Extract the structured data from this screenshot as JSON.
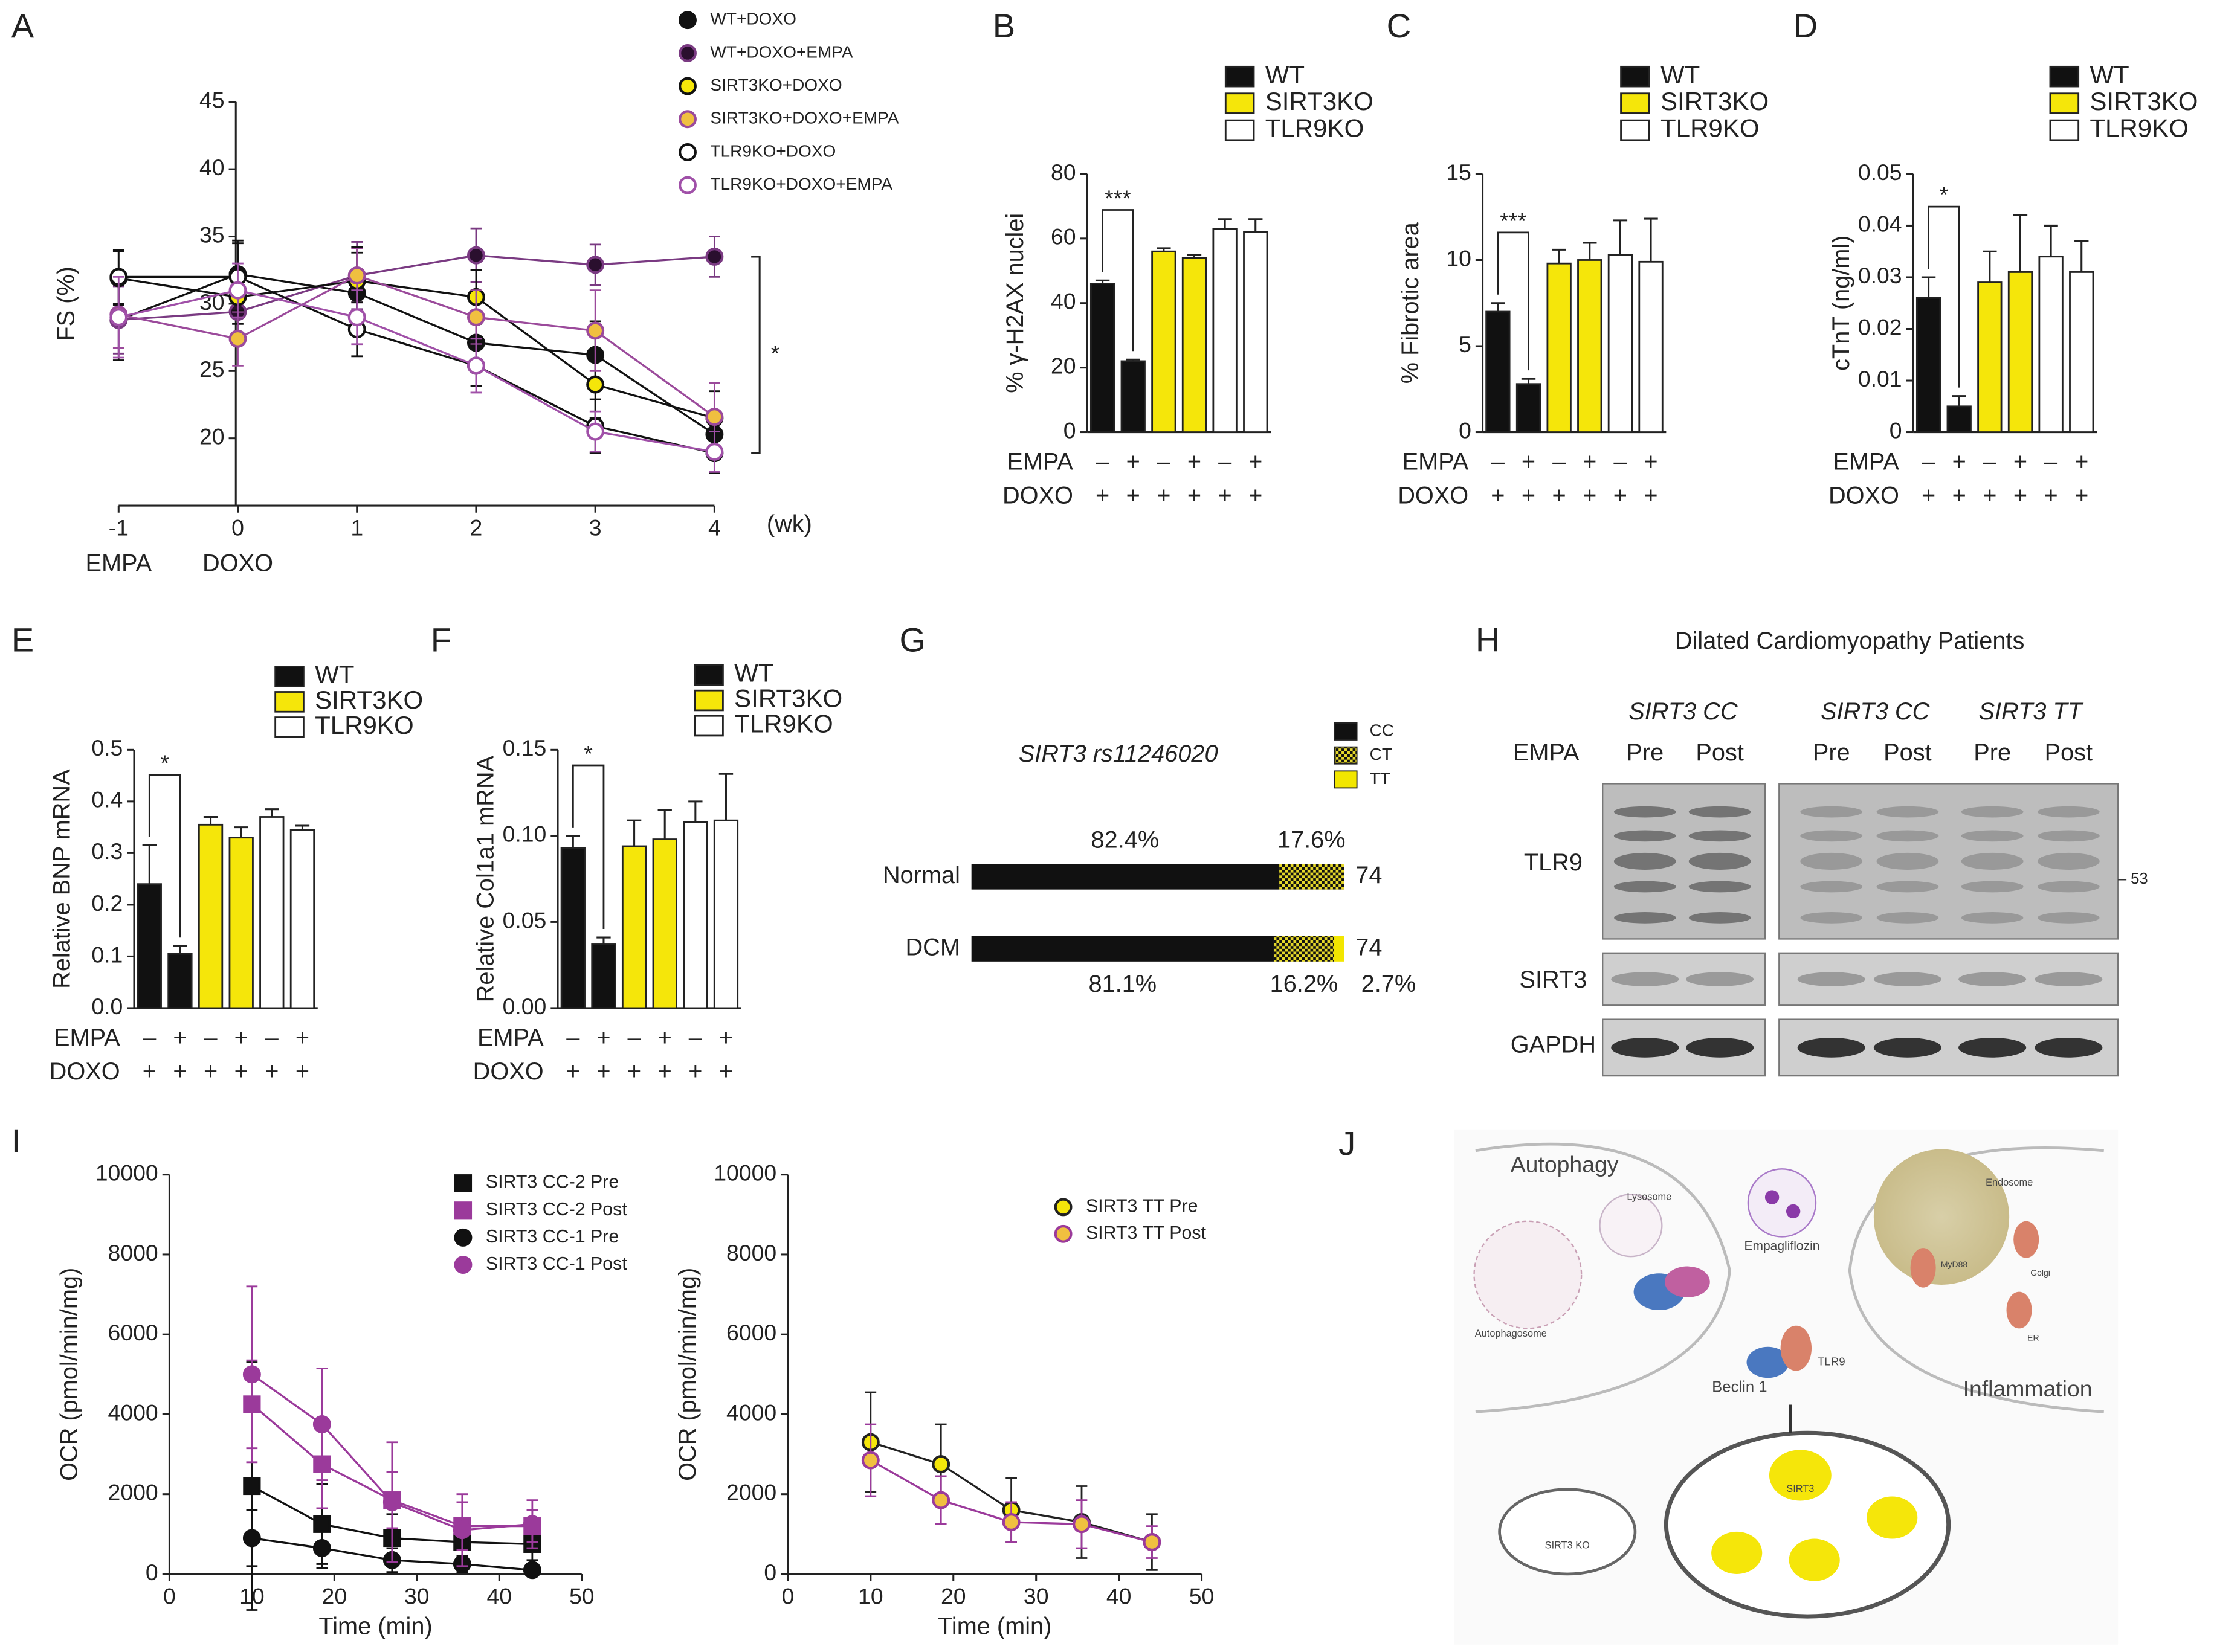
{
  "chart_data": [
    {
      "type": "line",
      "label": "A",
      "ylabel": "FS (%)",
      "xlabel": "(wk)",
      "x": [
        -1,
        0,
        1,
        2,
        3,
        4
      ],
      "xlim": [
        -1,
        4
      ],
      "xticks": [
        -1,
        0,
        1,
        2,
        3,
        4
      ],
      "ylim": [
        15,
        45
      ],
      "yticks": [
        20,
        25,
        30,
        35,
        40,
        45
      ],
      "x_annotations": [
        {
          "x": -1,
          "text": "EMPA"
        },
        {
          "x": 0,
          "text": "DOXO"
        }
      ],
      "significance": "*",
      "series": [
        {
          "name": "WT+DOXO",
          "color": "#111111",
          "fill": "#111111",
          "marker": "circle",
          "values": [
            28.8,
            32.2,
            30.8,
            27.1,
            26.2,
            20.3
          ],
          "errors": [
            3,
            2.5,
            3,
            2,
            2.5,
            1.5
          ]
        },
        {
          "name": "WT+DOXO+EMPA",
          "color": "#7a3a82",
          "fill": "#2a0f2e",
          "marker": "circle",
          "values": [
            28.8,
            29.4,
            32.1,
            33.6,
            32.9,
            33.5
          ],
          "errors": [
            2.5,
            2,
            2.5,
            2,
            1.5,
            1.5
          ]
        },
        {
          "name": "SIRT3KO+DOXO",
          "color": "#111111",
          "fill": "#f5e60a",
          "marker": "circle",
          "values": [
            31.9,
            30.5,
            31.7,
            30.5,
            24,
            21.5
          ],
          "errors": [
            2,
            2,
            2.5,
            2,
            2.5,
            2
          ]
        },
        {
          "name": "SIRT3KO+DOXO+EMPA",
          "color": "#9b4a9b",
          "fill": "#f0c040",
          "marker": "circle",
          "values": [
            29.2,
            27.4,
            32.1,
            29,
            28,
            21.6
          ],
          "errors": [
            2.5,
            2,
            2,
            2,
            3,
            2.5
          ]
        },
        {
          "name": "TLR9KO+DOXO",
          "color": "#111111",
          "fill": "#ffffff",
          "marker": "circle",
          "values": [
            32,
            32,
            28.1,
            25.4,
            20.9,
            18.9
          ],
          "errors": [
            2,
            2.5,
            2,
            1.5,
            2,
            1.5
          ]
        },
        {
          "name": "TLR9KO+DOXO+EMPA",
          "color": "#a050a8",
          "fill": "#ffffff",
          "marker": "circle",
          "values": [
            29,
            31,
            29,
            25.4,
            20.5,
            19
          ],
          "errors": [
            3,
            2,
            2,
            2,
            1.5,
            1.5
          ]
        }
      ]
    },
    {
      "type": "bar",
      "label": "B",
      "ylabel": "% γ-H2AX nuclei",
      "ylim": [
        0,
        80
      ],
      "yticks": [
        0,
        20,
        40,
        60,
        80
      ],
      "values": [
        46,
        22,
        56,
        54,
        63,
        62
      ],
      "errors": [
        1,
        0.5,
        1,
        1,
        3,
        4
      ],
      "colors": [
        "#111111",
        "#111111",
        "#f5e60a",
        "#f5e60a",
        "#ffffff",
        "#ffffff"
      ],
      "significance": "***",
      "rows": [
        {
          "label": "EMPA",
          "values": [
            "–",
            "+",
            "–",
            "+",
            "–",
            "+"
          ]
        },
        {
          "label": "DOXO",
          "values": [
            "+",
            "+",
            "+",
            "+",
            "+",
            "+"
          ]
        }
      ],
      "legend": [
        {
          "name": "WT",
          "color": "#111111"
        },
        {
          "name": "SIRT3KO",
          "color": "#f5e60a"
        },
        {
          "name": "TLR9KO",
          "color": "#ffffff"
        }
      ]
    },
    {
      "type": "bar",
      "label": "C",
      "ylabel": "% Fibrotic area",
      "ylim": [
        0,
        15
      ],
      "yticks": [
        0,
        5,
        10,
        15
      ],
      "values": [
        7,
        2.8,
        9.8,
        10,
        10.3,
        9.9
      ],
      "errors": [
        0.5,
        0.3,
        0.8,
        1,
        2,
        2.5
      ],
      "colors": [
        "#111111",
        "#111111",
        "#f5e60a",
        "#f5e60a",
        "#ffffff",
        "#ffffff"
      ],
      "significance": "***",
      "rows": [
        {
          "label": "EMPA",
          "values": [
            "–",
            "+",
            "–",
            "+",
            "–",
            "+"
          ]
        },
        {
          "label": "DOXO",
          "values": [
            "+",
            "+",
            "+",
            "+",
            "+",
            "+"
          ]
        }
      ],
      "legend": [
        {
          "name": "WT",
          "color": "#111111"
        },
        {
          "name": "SIRT3KO",
          "color": "#f5e60a"
        },
        {
          "name": "TLR9KO",
          "color": "#ffffff"
        }
      ]
    },
    {
      "type": "bar",
      "label": "D",
      "ylabel": "cTnT (ng/ml)",
      "ylim": [
        0,
        0.05
      ],
      "yticks": [
        0,
        0.01,
        0.02,
        0.03,
        0.04,
        0.05
      ],
      "values": [
        0.026,
        0.005,
        0.029,
        0.031,
        0.034,
        0.031
      ],
      "errors": [
        0.004,
        0.002,
        0.006,
        0.011,
        0.006,
        0.006
      ],
      "colors": [
        "#111111",
        "#111111",
        "#f5e60a",
        "#f5e60a",
        "#ffffff",
        "#ffffff"
      ],
      "significance": "*",
      "rows": [
        {
          "label": "EMPA",
          "values": [
            "–",
            "+",
            "–",
            "+",
            "–",
            "+"
          ]
        },
        {
          "label": "DOXO",
          "values": [
            "+",
            "+",
            "+",
            "+",
            "+",
            "+"
          ]
        }
      ],
      "legend": [
        {
          "name": "WT",
          "color": "#111111"
        },
        {
          "name": "SIRT3KO",
          "color": "#f5e60a"
        },
        {
          "name": "TLR9KO",
          "color": "#ffffff"
        }
      ]
    },
    {
      "type": "bar",
      "label": "E",
      "ylabel": "Relative BNP mRNA",
      "ylim": [
        0,
        0.5
      ],
      "yticks": [
        {
          "value": 0,
          "label": "0.0"
        },
        0.1,
        0.2,
        0.3,
        0.4,
        0.5
      ],
      "values": [
        0.24,
        0.105,
        0.355,
        0.33,
        0.37,
        0.345
      ],
      "errors": [
        0.075,
        0.015,
        0.015,
        0.02,
        0.015,
        0.008
      ],
      "colors": [
        "#111111",
        "#111111",
        "#f5e60a",
        "#f5e60a",
        "#ffffff",
        "#ffffff"
      ],
      "significance": "*",
      "rows": [
        {
          "label": "EMPA",
          "values": [
            "–",
            "+",
            "–",
            "+",
            "–",
            "+"
          ]
        },
        {
          "label": "DOXO",
          "values": [
            "+",
            "+",
            "+",
            "+",
            "+",
            "+"
          ]
        }
      ],
      "legend": [
        {
          "name": "WT",
          "color": "#111111"
        },
        {
          "name": "SIRT3KO",
          "color": "#f5e60a"
        },
        {
          "name": "TLR9KO",
          "color": "#ffffff"
        }
      ]
    },
    {
      "type": "bar",
      "label": "F",
      "ylabel": "Relative Col1a1 mRNA",
      "ylim": [
        0,
        0.15
      ],
      "yticks": [
        {
          "value": 0,
          "label": "0.00"
        },
        {
          "value": 0.05,
          "label": "0.05"
        },
        {
          "value": 0.1,
          "label": "0.10"
        },
        {
          "value": 0.15,
          "label": "0.15"
        }
      ],
      "values": [
        0.093,
        0.037,
        0.094,
        0.098,
        0.108,
        0.109
      ],
      "errors": [
        0.007,
        0.004,
        0.015,
        0.017,
        0.012,
        0.027
      ],
      "colors": [
        "#111111",
        "#111111",
        "#f5e60a",
        "#f5e60a",
        "#ffffff",
        "#ffffff"
      ],
      "significance": "*",
      "rows": [
        {
          "label": "EMPA",
          "values": [
            "–",
            "+",
            "–",
            "+",
            "–",
            "+"
          ]
        },
        {
          "label": "DOXO",
          "values": [
            "+",
            "+",
            "+",
            "+",
            "+",
            "+"
          ]
        }
      ],
      "legend": [
        {
          "name": "WT",
          "color": "#111111"
        },
        {
          "name": "SIRT3KO",
          "color": "#f5e60a"
        },
        {
          "name": "TLR9KO",
          "color": "#ffffff"
        }
      ]
    },
    {
      "type": "stacked_bar",
      "label": "G",
      "title": "SIRT3 rs11246020",
      "categories": [
        "Normal",
        "DCM"
      ],
      "xlim": [
        0,
        100
      ],
      "n": [
        74,
        74
      ],
      "series": [
        {
          "name": "CC",
          "color": "#111111",
          "values": [
            82.4,
            81.1
          ],
          "value_labels": [
            "82.4%",
            "81.1%"
          ]
        },
        {
          "name": "CT",
          "color": "#e6d92a",
          "hatch": true,
          "values": [
            17.6,
            16.2
          ],
          "value_labels": [
            "17.6%",
            "16.2%"
          ]
        },
        {
          "name": "TT",
          "color": "#f2e600",
          "values": [
            0,
            2.7
          ],
          "value_labels": [
            null,
            "2.7%"
          ]
        }
      ]
    },
    {
      "type": "line",
      "label": "I",
      "ylabel": "OCR (pmol/min/mg)",
      "xlabel": "Time (min)",
      "x": [
        10,
        18.5,
        27,
        35.5,
        44
      ],
      "xlim": [
        0,
        50
      ],
      "xticks": [
        0,
        10,
        20,
        30,
        40,
        50
      ],
      "ylim": [
        0,
        10000
      ],
      "yticks": [
        0,
        2000,
        4000,
        6000,
        8000,
        10000
      ],
      "series": [
        {
          "name": "SIRT3 CC-2 Pre",
          "color": "#111111",
          "fill": "#111111",
          "marker": "square",
          "values": [
            2200,
            1250,
            900,
            800,
            750
          ],
          "errors": [
            3100,
            1000,
            600,
            500,
            400
          ]
        },
        {
          "name": "SIRT3 CC-2 Post",
          "color": "#9b3a9b",
          "fill": "#9b3a9b",
          "marker": "square",
          "values": [
            4250,
            2750,
            1850,
            1200,
            1200
          ],
          "errors": [
            1100,
            1100,
            700,
            600,
            400
          ]
        },
        {
          "name": "SIRT3 CC-1 Pre",
          "color": "#111111",
          "fill": "#111111",
          "marker": "circle",
          "values": [
            900,
            650,
            350,
            250,
            100
          ],
          "errors": [
            700,
            500,
            300,
            200,
            100
          ]
        },
        {
          "name": "SIRT3 CC-1 Post",
          "color": "#9b3a9b",
          "fill": "#9b3a9b",
          "marker": "circle",
          "values": [
            5000,
            3750,
            1800,
            1100,
            1250
          ],
          "errors": [
            2200,
            1400,
            1500,
            900,
            600
          ]
        }
      ]
    },
    {
      "type": "line",
      "ylabel": "OCR (pmol/min/mg)",
      "xlabel": "Time (min)",
      "x": [
        10,
        18.5,
        27,
        35.5,
        44
      ],
      "xlim": [
        0,
        50
      ],
      "xticks": [
        0,
        10,
        20,
        30,
        40,
        50
      ],
      "ylim": [
        0,
        10000
      ],
      "yticks": [
        0,
        2000,
        4000,
        6000,
        8000,
        10000
      ],
      "series": [
        {
          "name": "SIRT3 TT Pre",
          "color": "#222222",
          "fill": "#f5e60a",
          "marker": "circle",
          "values": [
            3300,
            2750,
            1600,
            1300,
            800
          ],
          "errors": [
            1250,
            1000,
            800,
            900,
            700
          ]
        },
        {
          "name": "SIRT3 TT Post",
          "color": "#9b3a9b",
          "fill": "#f0c040",
          "marker": "circle",
          "values": [
            2850,
            1850,
            1300,
            1250,
            800
          ],
          "errors": [
            900,
            600,
            500,
            600,
            400
          ]
        }
      ]
    }
  ],
  "blot": {
    "label": "H",
    "title": "Dilated Cardiomyopathy Patients",
    "groups": [
      "SIRT3 CC",
      "SIRT3 CC",
      "SIRT3 TT"
    ],
    "treatment_label": "EMPA",
    "lanes": [
      "Pre",
      "Post",
      "Pre",
      "Post",
      "Pre",
      "Post"
    ],
    "proteins": [
      "TLR9",
      "SIRT3",
      "GAPDH"
    ],
    "marker": "53"
  },
  "diagram": {
    "label": "J",
    "labels": [
      "Autophagy",
      "Lysosome",
      "Empagliflozin",
      "Endosome",
      "Autophagosome",
      "Beclin 1",
      "TLR9",
      "MyD88",
      "Golgi",
      "ER",
      "Inflammation",
      "SIRT3 KO",
      "SIRT3"
    ]
  }
}
